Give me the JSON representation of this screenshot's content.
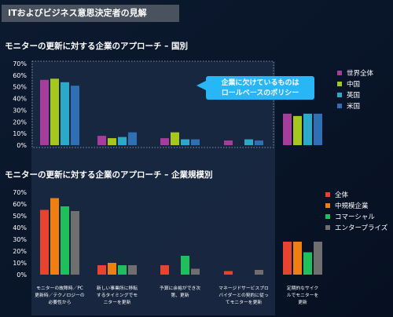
{
  "header": {
    "title": "ITおよびビジネス意思決定者の見解"
  },
  "callout": {
    "lines": [
      "企業に欠けているものは",
      "ロールベースのポリシー"
    ]
  },
  "colors": {
    "background": "#0a1628",
    "panel": "#1b2a44",
    "callout": "#29b6f6"
  },
  "chart_data": [
    {
      "type": "bar",
      "title": "モニターの更新に対する企業のアプローチ – 国別",
      "categories": [
        "モニターの故障時／PC更新時／テクノロジーの必要性から",
        "新しい事業所に移転するタイミングでモニターを更新",
        "予算に余裕ができ次第、更新",
        "マネージドサービスプロバイダーとの契約に従ってモニターを更新",
        "定期的なサイクルでモニターを更新"
      ],
      "ylim": [
        0,
        70
      ],
      "yticks": [
        "0%",
        "10%",
        "20%",
        "30%",
        "40%",
        "50%",
        "60%",
        "70%"
      ],
      "legend_position": "right",
      "series": [
        {
          "name": "世界全体",
          "color": "#a43d9c",
          "values": [
            56,
            8,
            6,
            4,
            27
          ]
        },
        {
          "name": "中国",
          "color": "#a6c81e",
          "values": [
            57,
            6,
            11,
            0,
            25
          ]
        },
        {
          "name": "英国",
          "color": "#2aa9c9",
          "values": [
            54,
            7,
            5,
            5,
            27
          ]
        },
        {
          "name": "米国",
          "color": "#2f6fb3",
          "values": [
            51,
            11,
            5,
            4,
            27
          ]
        }
      ]
    },
    {
      "type": "bar",
      "title": "モニターの更新に対する企業のアプローチ – 企業規模別",
      "categories": [
        "モニターの故障時／PC更新時／テクノロジーの必要性から",
        "新しい事業所に移転するタイミングでモニターを更新",
        "予算に余裕ができ次第、更新",
        "マネージドサービスプロバイダーとの契約に従ってモニターを更新",
        "定期的なサイクルでモニターを更新"
      ],
      "ylim": [
        0,
        70
      ],
      "yticks": [
        "0%",
        "10%",
        "20%",
        "30%",
        "40%",
        "50%",
        "60%",
        "70%"
      ],
      "legend_position": "right",
      "series": [
        {
          "name": "全体",
          "color": "#e8432f",
          "values": [
            55,
            8,
            8,
            3,
            28
          ]
        },
        {
          "name": "中規模企業",
          "color": "#f07f12",
          "values": [
            65,
            10,
            0,
            0,
            28
          ]
        },
        {
          "name": "コマーシャル",
          "color": "#1fbf5c",
          "values": [
            58,
            8,
            16,
            0,
            19
          ]
        },
        {
          "name": "エンタープライズ",
          "color": "#6f6f6f",
          "values": [
            54,
            8,
            5,
            4,
            28
          ]
        }
      ]
    }
  ],
  "category_labels": [
    [
      "モニターの故障時／PC",
      "更新時／テクノロジーの",
      "必要性から"
    ],
    [
      "新しい事業所に移転",
      "するタイミングでモ",
      "ニターを更新"
    ],
    [
      "予算に余裕ができ次",
      "第、更新"
    ],
    [
      "マネージドサービスプロ",
      "バイダーとの契約に従っ",
      "てモニターを更新"
    ],
    [
      "定期的なサイク",
      "ルでモニターを",
      "更新"
    ]
  ]
}
